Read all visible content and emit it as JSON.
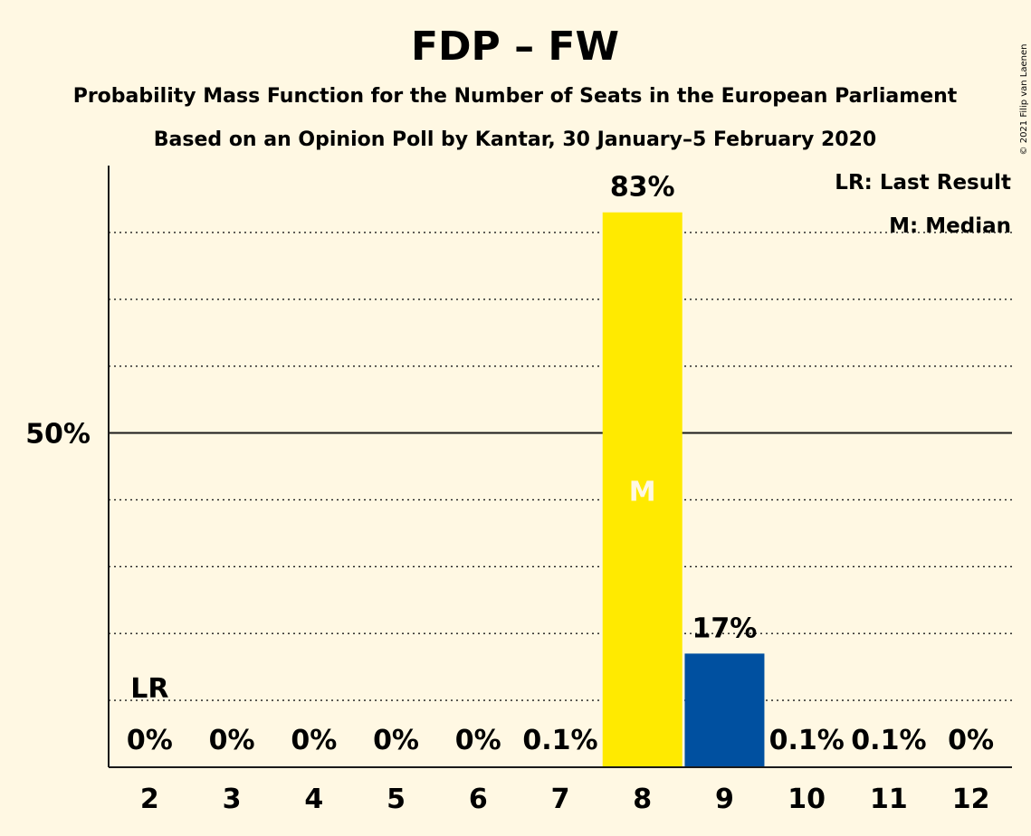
{
  "chart_data": {
    "type": "bar",
    "title": "FDP – FW",
    "subtitle": "Probability Mass Function for the Number of Seats in the European Parliament",
    "subtitle2": "Based on an Opinion Poll by Kantar, 30 January–5 February 2020",
    "copyright": "© 2021 Filip van Laenen",
    "legend": {
      "position": "top-right",
      "items": [
        "LR: Last Result",
        "M: Median"
      ]
    },
    "categories": [
      "2",
      "3",
      "4",
      "5",
      "6",
      "7",
      "8",
      "9",
      "10",
      "11",
      "12"
    ],
    "values": [
      0,
      0,
      0,
      0,
      0,
      0.1,
      83,
      17,
      0.1,
      0.1,
      0
    ],
    "value_labels": [
      "0%",
      "0%",
      "0%",
      "0%",
      "0%",
      "0.1%",
      "83%",
      "17%",
      "0.1%",
      "0.1%",
      "0%"
    ],
    "ylim": [
      0,
      90
    ],
    "y_tick_label": "50%",
    "y_tick_value": 50,
    "gridlines": [
      10,
      20,
      30,
      40,
      60,
      70,
      80
    ],
    "last_result": {
      "category": "2",
      "label": "LR"
    },
    "median": {
      "category": "8",
      "label": "M"
    },
    "colors": {
      "background": "#FFF8E3",
      "median_bar": "#FFEA00",
      "other_bar": "#0050A0",
      "axis": "#1a1a1a",
      "median_label": "#FFF8E3"
    },
    "grid": true
  }
}
